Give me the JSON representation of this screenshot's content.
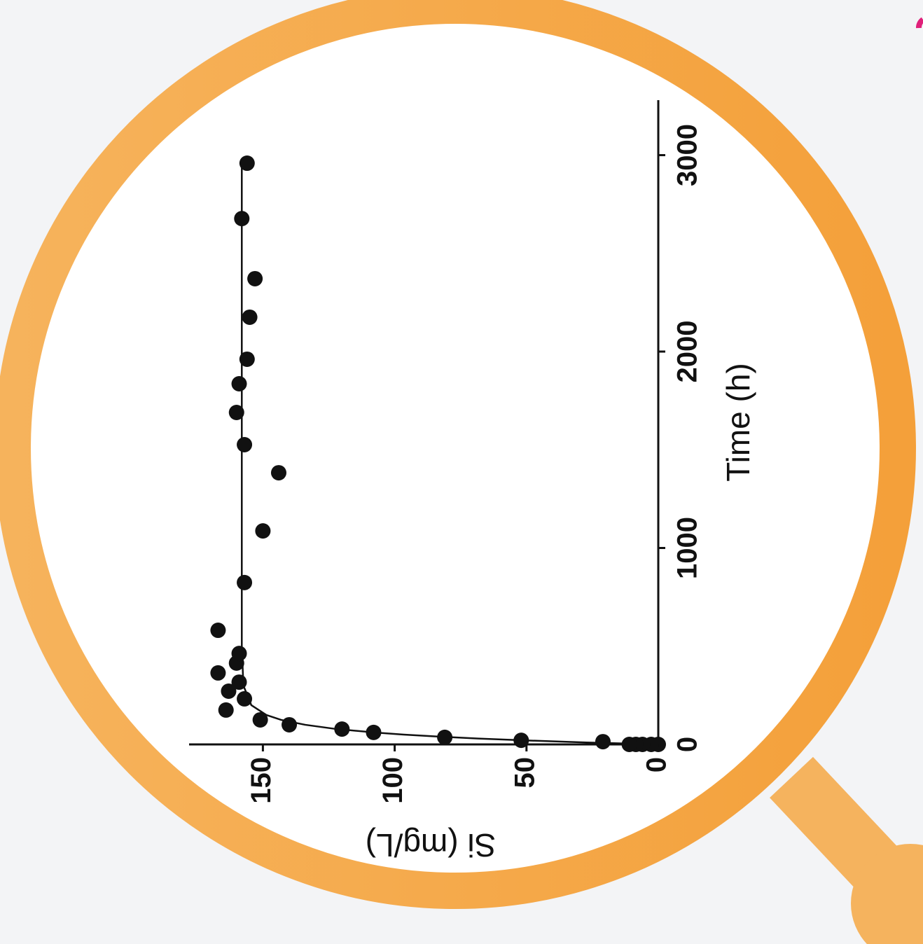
{
  "chart_data": {
    "type": "scatter",
    "xlabel": "Time (h)",
    "ylabel": "Si (mg/L)",
    "xlim": [
      0,
      3280
    ],
    "ylim": [
      0,
      178
    ],
    "xticks": [
      0,
      1000,
      2000,
      3000
    ],
    "yticks": [
      0,
      50,
      100,
      150
    ],
    "series": [
      {
        "color": "#111111",
        "x": [
          0,
          0,
          0,
          0,
          0,
          14,
          21,
          36,
          61,
          78,
          100,
          125,
          175,
          232,
          271,
          317,
          364,
          414,
          463,
          581,
          824,
          1087,
          1383,
          1526,
          1690,
          1836,
          1961,
          2175,
          2371,
          2677,
          2959
        ],
        "values": [
          0,
          2.7,
          6,
          8.5,
          11,
          21,
          52,
          81,
          108,
          120,
          140,
          151,
          164,
          157,
          163,
          159,
          167,
          160,
          159,
          167,
          157,
          150,
          144,
          157,
          160,
          159,
          156,
          155,
          153,
          158,
          156
        ]
      }
    ],
    "fit": {
      "color": "#111111",
      "x": [
        0,
        10,
        20,
        30,
        40,
        50,
        60,
        80,
        100,
        125,
        150,
        200,
        300,
        500,
        1000,
        2000,
        2950
      ],
      "values": [
        0,
        27.2,
        49.6,
        68.3,
        83.7,
        96.5,
        107.1,
        123.1,
        134.0,
        143.1,
        148.7,
        154.4,
        157.4,
        158,
        158,
        158,
        158
      ]
    }
  }
}
